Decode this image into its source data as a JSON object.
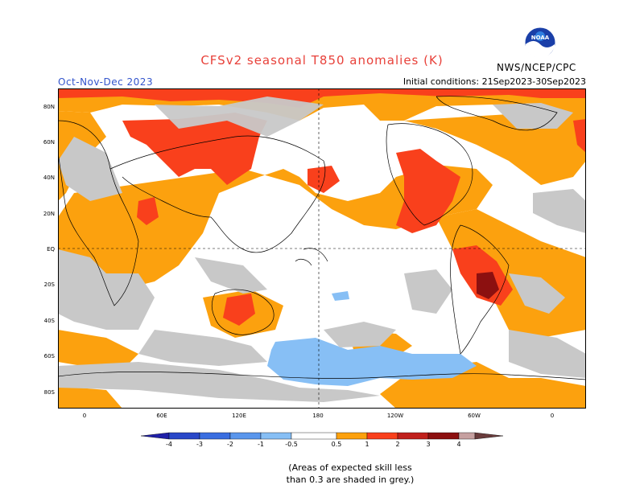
{
  "header": {
    "title": "CFSv2 seasonal T850 anomalies (K)",
    "season": "Oct-Nov-Dec 2023",
    "initial_conditions": "Initial conditions: 21Sep2023-30Sep2023",
    "agency": "NWS/NCEP/CPC",
    "logo_text": "NOAA"
  },
  "axes": {
    "lat_labels": [
      "80N",
      "60N",
      "40N",
      "20N",
      "EQ",
      "20S",
      "40S",
      "60S",
      "80S"
    ],
    "lon_labels": [
      "0",
      "60E",
      "120E",
      "180",
      "120W",
      "60W",
      "0"
    ]
  },
  "legend": {
    "labels": [
      "-4",
      "-3",
      "-2",
      "-1",
      "-0.5",
      "0.5",
      "1",
      "2",
      "3",
      "4"
    ],
    "colors": {
      "lt_neg4": "#2020a8",
      "neg4_neg3": "#2a48c8",
      "neg3_neg2": "#3a6ee0",
      "neg2_neg1": "#5a96ec",
      "neg1_neg05": "#87bff5",
      "neutral": "#ffffff",
      "p05_1": "#fca10e",
      "p1_2": "#f9401c",
      "p2_3": "#c0201c",
      "p3_4": "#8c1010",
      "p4_5": "#c6a0a0",
      "gt5": "#6a3c3c",
      "low_skill": "#c8c8c8"
    }
  },
  "footnote": {
    "line1": "(Areas of expected skill less",
    "line2": "than 0.3 are shaded in grey.)"
  }
}
